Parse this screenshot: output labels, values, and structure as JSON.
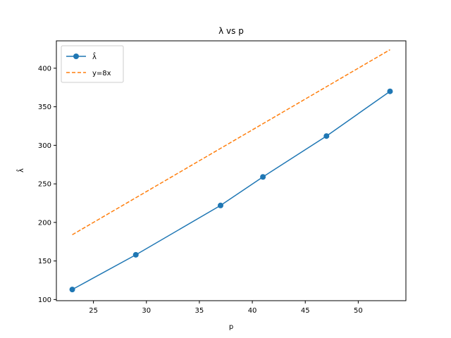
{
  "chart_data": {
    "type": "line",
    "title": "λ vs p",
    "xlabel": "p",
    "ylabel": "λ̂",
    "xlim": [
      21.5,
      54.5
    ],
    "ylim": [
      98.5,
      435.5
    ],
    "xticks": [
      25,
      30,
      35,
      40,
      45,
      50
    ],
    "yticks": [
      100,
      150,
      200,
      250,
      300,
      350,
      400
    ],
    "grid": false,
    "legend_position": "upper left",
    "series": [
      {
        "name": "λ̂",
        "color": "#1f77b4",
        "style": "solid",
        "marker": "circle",
        "x": [
          23,
          29,
          37,
          41,
          47,
          53
        ],
        "y": [
          113,
          158,
          222,
          259,
          312,
          370
        ]
      },
      {
        "name": "y=8x",
        "color": "#ff7f0e",
        "style": "dashed",
        "marker": "none",
        "x": [
          23,
          53
        ],
        "y": [
          184,
          424
        ]
      }
    ]
  }
}
